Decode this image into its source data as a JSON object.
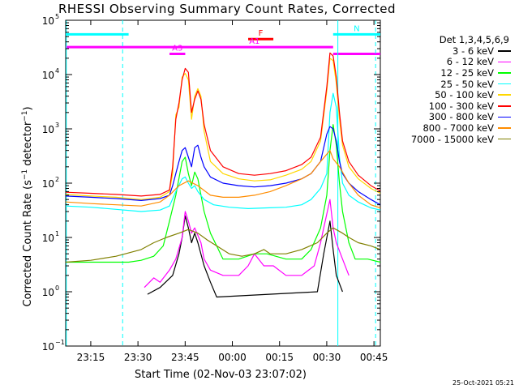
{
  "chart_data": {
    "type": "line",
    "title": "RHESSI Observing Summary Count Rates, Corrected",
    "xlabel": "Start Time (02-Nov-03 23:07:02)",
    "ylabel": "Corrected Count Rate",
    "ylabel_unit_base": "(s",
    "ylabel_unit_exp1": "−1",
    "ylabel_unit_mid": " detector",
    "ylabel_unit_exp2": "−1",
    "ylabel_unit_end": ")",
    "yscale": "log",
    "ylim": [
      0.1,
      100000
    ],
    "xlim": [
      0,
      100
    ],
    "x_unit": "minutes after 23:07:02",
    "x_ticks": [
      {
        "label": "23:15",
        "x": 7.97
      },
      {
        "label": "23:30",
        "x": 22.97
      },
      {
        "label": "23:45",
        "x": 37.97
      },
      {
        "label": "00:00",
        "x": 52.97
      },
      {
        "label": "00:15",
        "x": 67.97
      },
      {
        "label": "00:30",
        "x": 82.97
      },
      {
        "label": "00:45",
        "x": 97.97
      }
    ],
    "y_ticks": [
      {
        "label": "10",
        "exp": "−1",
        "v": 0.1
      },
      {
        "label": "10",
        "exp": "0",
        "v": 1
      },
      {
        "label": "10",
        "exp": "1",
        "v": 10
      },
      {
        "label": "10",
        "exp": "2",
        "v": 100
      },
      {
        "label": "10",
        "exp": "3",
        "v": 1000
      },
      {
        "label": "10",
        "exp": "4",
        "v": 10000
      },
      {
        "label": "10",
        "exp": "5",
        "v": 100000
      }
    ],
    "legend_title": "Det 1,3,4,5,6,9",
    "series": [
      {
        "name": "3 - 6 keV",
        "color": "#000000",
        "points": [
          [
            26,
            0.9
          ],
          [
            30,
            1.2
          ],
          [
            34,
            2
          ],
          [
            36,
            5
          ],
          [
            37,
            10
          ],
          [
            38,
            25
          ],
          [
            39,
            15
          ],
          [
            40,
            8
          ],
          [
            41,
            12
          ],
          [
            42,
            8
          ],
          [
            44,
            3
          ],
          [
            46,
            1.5
          ],
          [
            48,
            0.8
          ],
          [
            80,
            1
          ],
          [
            82,
            5
          ],
          [
            84,
            20
          ],
          [
            85,
            6
          ],
          [
            86,
            2
          ],
          [
            88,
            1
          ]
        ]
      },
      {
        "name": "6 - 12 keV",
        "color": "#ff00ff",
        "points": [
          [
            25,
            1.2
          ],
          [
            28,
            1.8
          ],
          [
            30,
            1.5
          ],
          [
            33,
            2.5
          ],
          [
            35,
            4
          ],
          [
            37,
            10
          ],
          [
            38,
            30
          ],
          [
            39,
            20
          ],
          [
            40,
            12
          ],
          [
            41,
            15
          ],
          [
            43,
            8
          ],
          [
            44,
            4
          ],
          [
            46,
            2.5
          ],
          [
            50,
            2
          ],
          [
            55,
            2
          ],
          [
            58,
            3
          ],
          [
            60,
            5
          ],
          [
            63,
            3
          ],
          [
            66,
            3
          ],
          [
            70,
            2
          ],
          [
            75,
            2
          ],
          [
            79,
            3
          ],
          [
            81,
            8
          ],
          [
            82,
            15
          ],
          [
            84,
            50
          ],
          [
            85,
            15
          ],
          [
            86,
            8
          ],
          [
            88,
            4
          ],
          [
            90,
            2
          ]
        ]
      },
      {
        "name": "12 - 25 keV",
        "color": "#00ff00",
        "points": [
          [
            0,
            3.5
          ],
          [
            10,
            3.5
          ],
          [
            20,
            3.5
          ],
          [
            24,
            3.8
          ],
          [
            28,
            4.5
          ],
          [
            31,
            7
          ],
          [
            33,
            20
          ],
          [
            35,
            60
          ],
          [
            37,
            250
          ],
          [
            38,
            300
          ],
          [
            39,
            150
          ],
          [
            40,
            90
          ],
          [
            41,
            160
          ],
          [
            42,
            120
          ],
          [
            44,
            30
          ],
          [
            46,
            12
          ],
          [
            48,
            7
          ],
          [
            50,
            4
          ],
          [
            55,
            4
          ],
          [
            60,
            5
          ],
          [
            64,
            5
          ],
          [
            70,
            4
          ],
          [
            75,
            4
          ],
          [
            78,
            6
          ],
          [
            81,
            15
          ],
          [
            83,
            60
          ],
          [
            84,
            400
          ],
          [
            85,
            1200
          ],
          [
            86,
            500
          ],
          [
            87,
            100
          ],
          [
            88,
            30
          ],
          [
            90,
            8
          ],
          [
            92,
            4
          ],
          [
            96,
            4
          ],
          [
            100,
            3.5
          ]
        ]
      },
      {
        "name": "25 - 50 keV",
        "color": "#00ffff",
        "points": [
          [
            0,
            38
          ],
          [
            8,
            36
          ],
          [
            16,
            33
          ],
          [
            24,
            30
          ],
          [
            30,
            32
          ],
          [
            33,
            38
          ],
          [
            35,
            70
          ],
          [
            37,
            120
          ],
          [
            38,
            130
          ],
          [
            39,
            100
          ],
          [
            40,
            80
          ],
          [
            41,
            90
          ],
          [
            42,
            70
          ],
          [
            44,
            50
          ],
          [
            47,
            40
          ],
          [
            52,
            36
          ],
          [
            58,
            34
          ],
          [
            64,
            35
          ],
          [
            70,
            36
          ],
          [
            75,
            40
          ],
          [
            78,
            50
          ],
          [
            81,
            80
          ],
          [
            83,
            150
          ],
          [
            84,
            2000
          ],
          [
            85,
            4500
          ],
          [
            86,
            2500
          ],
          [
            87,
            300
          ],
          [
            88,
            100
          ],
          [
            90,
            60
          ],
          [
            93,
            45
          ],
          [
            97,
            35
          ],
          [
            100,
            32
          ]
        ]
      },
      {
        "name": "50 - 100 keV",
        "color": "#ffd700",
        "points": [
          [
            0,
            62
          ],
          [
            8,
            58
          ],
          [
            16,
            55
          ],
          [
            24,
            50
          ],
          [
            30,
            55
          ],
          [
            33,
            70
          ],
          [
            34,
            150
          ],
          [
            35,
            1800
          ],
          [
            36,
            2500
          ],
          [
            37,
            9000
          ],
          [
            38,
            10500
          ],
          [
            39,
            8000
          ],
          [
            40,
            1500
          ],
          [
            41,
            4000
          ],
          [
            42,
            5500
          ],
          [
            43,
            4000
          ],
          [
            44,
            900
          ],
          [
            46,
            250
          ],
          [
            50,
            150
          ],
          [
            55,
            120
          ],
          [
            60,
            110
          ],
          [
            65,
            115
          ],
          [
            70,
            140
          ],
          [
            75,
            180
          ],
          [
            78,
            250
          ],
          [
            81,
            600
          ],
          [
            83,
            5000
          ],
          [
            84,
            20000
          ],
          [
            85,
            18000
          ],
          [
            86,
            7000
          ],
          [
            87,
            1500
          ],
          [
            88,
            500
          ],
          [
            90,
            200
          ],
          [
            93,
            120
          ],
          [
            97,
            80
          ],
          [
            100,
            65
          ]
        ]
      },
      {
        "name": "100 - 300 keV",
        "color": "#ff0000",
        "points": [
          [
            0,
            68
          ],
          [
            8,
            65
          ],
          [
            16,
            62
          ],
          [
            24,
            58
          ],
          [
            30,
            62
          ],
          [
            33,
            75
          ],
          [
            34,
            200
          ],
          [
            35,
            1500
          ],
          [
            36,
            3000
          ],
          [
            37,
            8000
          ],
          [
            38,
            13000
          ],
          [
            39,
            11000
          ],
          [
            40,
            2000
          ],
          [
            41,
            3500
          ],
          [
            42,
            5000
          ],
          [
            43,
            3500
          ],
          [
            44,
            1200
          ],
          [
            46,
            400
          ],
          [
            50,
            200
          ],
          [
            55,
            150
          ],
          [
            60,
            140
          ],
          [
            65,
            150
          ],
          [
            70,
            170
          ],
          [
            75,
            220
          ],
          [
            78,
            300
          ],
          [
            81,
            700
          ],
          [
            83,
            6000
          ],
          [
            84,
            25000
          ],
          [
            85,
            22000
          ],
          [
            86,
            9000
          ],
          [
            87,
            2000
          ],
          [
            88,
            600
          ],
          [
            90,
            250
          ],
          [
            93,
            140
          ],
          [
            97,
            90
          ],
          [
            100,
            72
          ]
        ]
      },
      {
        "name": "300 - 800 keV",
        "color": "#0000ff",
        "points": [
          [
            0,
            58
          ],
          [
            8,
            55
          ],
          [
            16,
            52
          ],
          [
            24,
            48
          ],
          [
            30,
            52
          ],
          [
            33,
            60
          ],
          [
            34,
            90
          ],
          [
            35,
            150
          ],
          [
            36,
            250
          ],
          [
            37,
            400
          ],
          [
            38,
            450
          ],
          [
            39,
            300
          ],
          [
            40,
            200
          ],
          [
            41,
            450
          ],
          [
            42,
            500
          ],
          [
            43,
            300
          ],
          [
            44,
            200
          ],
          [
            46,
            130
          ],
          [
            50,
            100
          ],
          [
            55,
            90
          ],
          [
            60,
            85
          ],
          [
            65,
            90
          ],
          [
            70,
            100
          ],
          [
            75,
            120
          ],
          [
            78,
            150
          ],
          [
            81,
            250
          ],
          [
            83,
            800
          ],
          [
            84,
            1100
          ],
          [
            85,
            1000
          ],
          [
            86,
            600
          ],
          [
            87,
            250
          ],
          [
            88,
            150
          ],
          [
            90,
            100
          ],
          [
            93,
            70
          ],
          [
            97,
            50
          ],
          [
            100,
            40
          ]
        ]
      },
      {
        "name": "800 - 7000 keV",
        "color": "#ff8c00",
        "points": [
          [
            0,
            45
          ],
          [
            8,
            42
          ],
          [
            16,
            40
          ],
          [
            24,
            38
          ],
          [
            30,
            45
          ],
          [
            33,
            60
          ],
          [
            36,
            90
          ],
          [
            39,
            110
          ],
          [
            42,
            90
          ],
          [
            46,
            60
          ],
          [
            50,
            55
          ],
          [
            55,
            55
          ],
          [
            60,
            60
          ],
          [
            65,
            70
          ],
          [
            70,
            90
          ],
          [
            75,
            120
          ],
          [
            78,
            150
          ],
          [
            81,
            250
          ],
          [
            84,
            400
          ],
          [
            85,
            280
          ],
          [
            87,
            200
          ],
          [
            90,
            100
          ],
          [
            93,
            60
          ],
          [
            97,
            40
          ],
          [
            100,
            35
          ]
        ]
      },
      {
        "name": "7000 - 15000 keV",
        "color": "#808000",
        "points": [
          [
            0,
            3.5
          ],
          [
            8,
            3.8
          ],
          [
            16,
            4.5
          ],
          [
            24,
            6
          ],
          [
            28,
            8
          ],
          [
            32,
            10
          ],
          [
            36,
            12
          ],
          [
            39,
            14
          ],
          [
            42,
            12
          ],
          [
            45,
            9
          ],
          [
            48,
            7
          ],
          [
            52,
            5
          ],
          [
            56,
            4.5
          ],
          [
            60,
            5
          ],
          [
            63,
            6
          ],
          [
            65,
            5
          ],
          [
            70,
            5
          ],
          [
            75,
            6
          ],
          [
            80,
            8
          ],
          [
            83,
            12
          ],
          [
            85,
            15
          ],
          [
            88,
            12
          ],
          [
            90,
            10
          ],
          [
            93,
            8
          ],
          [
            97,
            7
          ],
          [
            100,
            6
          ]
        ]
      }
    ],
    "annotation_bars": [
      {
        "label": "N",
        "color": "#00ffff",
        "segments": [
          [
            0,
            20
          ],
          [
            85,
            100
          ]
        ],
        "v": 55000
      },
      {
        "label": "F",
        "color": "#ff0000",
        "segments": [
          [
            58,
            66
          ]
        ],
        "v": 45000
      },
      {
        "label": "A1",
        "color": "#ff00ff",
        "segments": [
          [
            0,
            35
          ],
          [
            35,
            85
          ]
        ],
        "v": 32000
      },
      {
        "label": "A3",
        "color": "#ff00ff",
        "segments": [
          [
            33,
            38
          ]
        ],
        "v": 24000
      },
      {
        "label": "",
        "color": "#ff00ff",
        "segments": [
          [
            85,
            100
          ]
        ],
        "v": 24000
      }
    ],
    "vlines": [
      {
        "color": "#00ffff",
        "x": 18.1,
        "style": "dashed"
      },
      {
        "color": "#00ffff",
        "x": 86.5,
        "style": "solid"
      },
      {
        "color": "#00ffff",
        "x": 98.5,
        "style": "dashed"
      },
      {
        "color": "#00ffff",
        "x": 0.2,
        "style": "solid"
      }
    ],
    "legend_placement": "right",
    "grid": false
  },
  "footer": {
    "timestamp": "25-Oct-2021 05:21"
  }
}
